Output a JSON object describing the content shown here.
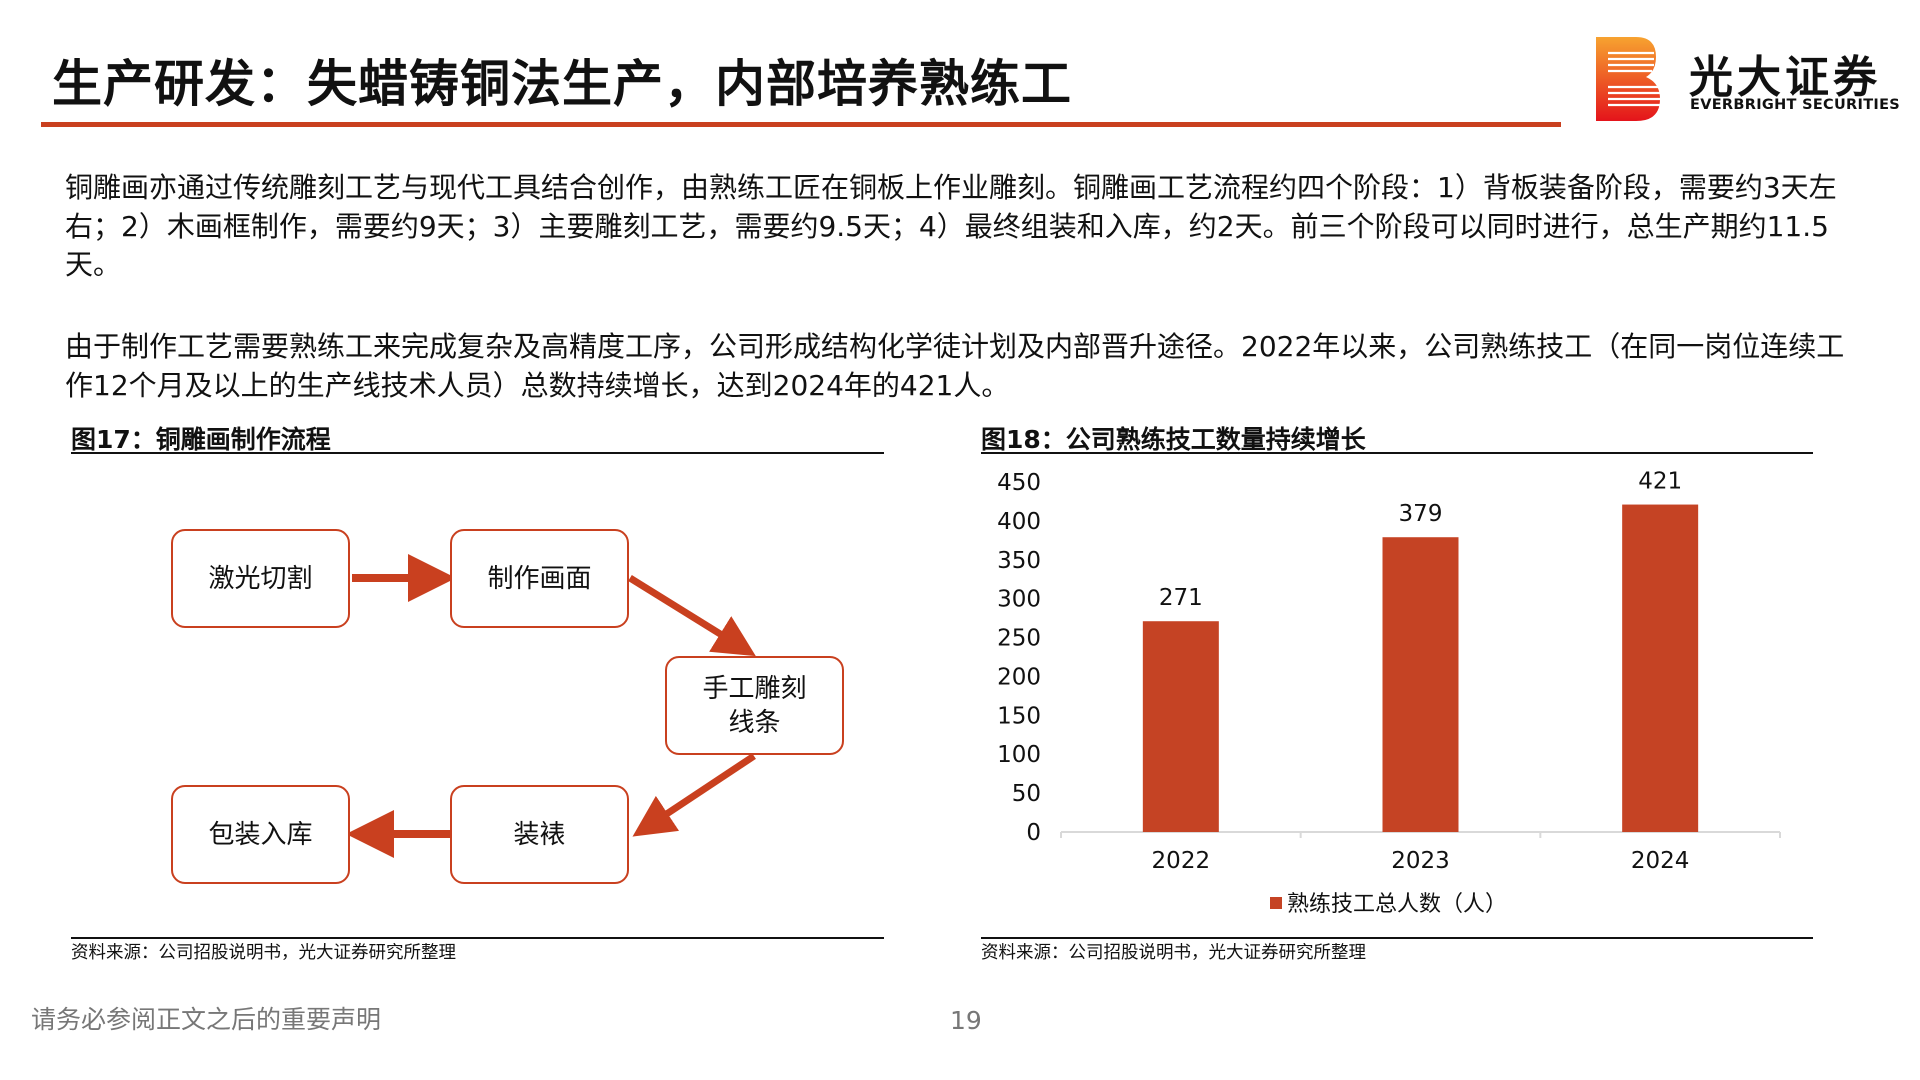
{
  "header": {
    "title": "生产研发：失蜡铸铜法生产，内部培养熟练工",
    "logo_cn": "光大证券",
    "logo_en": "EVERBRIGHT SECURITIES"
  },
  "body": {
    "paragraph1": "铜雕画亦通过传统雕刻工艺与现代工具结合创作，由熟练工匠在铜板上作业雕刻。铜雕画工艺流程约四个阶段：1）背板装备阶段，需要约3天左右；2）木画框制作，需要约9天；3）主要雕刻工艺，需要约9.5天；4）最终组装和入库，约2天。前三个阶段可以同时进行，总生产期约11.5天。",
    "paragraph2": "由于制作工艺需要熟练工来完成复杂及高精度工序，公司形成结构化学徒计划及内部晋升途径。2022年以来，公司熟练技工（在同一岗位连续工作12个月及以上的生产线技术人员）总数持续增长，达到2024年的421人。"
  },
  "figure17": {
    "title": "图17：铜雕画制作流程",
    "steps": [
      "激光切割",
      "制作画面",
      "手工雕刻\n线条",
      "装裱",
      "包装入库"
    ],
    "source": "资料来源：公司招股说明书，光大证券研究所整理"
  },
  "figure18": {
    "title": "图18：公司熟练技工数量持续增长",
    "source": "资料来源：公司招股说明书，光大证券研究所整理"
  },
  "chart_data": {
    "type": "bar",
    "title": "图18：公司熟练技工数量持续增长",
    "categories": [
      "2022",
      "2023",
      "2024"
    ],
    "series": [
      {
        "name": "熟练技工总人数（人）",
        "values": [
          271,
          379,
          421
        ]
      }
    ],
    "ylim": [
      0,
      450
    ],
    "yticks": [
      0,
      50,
      100,
      150,
      200,
      250,
      300,
      350,
      400,
      450
    ],
    "legend_position": "bottom",
    "grid": false
  },
  "colors": {
    "accent": "#c9401f",
    "bar": "#c54324"
  },
  "footer": {
    "note": "请务必参阅正文之后的重要声明",
    "page": "19"
  }
}
